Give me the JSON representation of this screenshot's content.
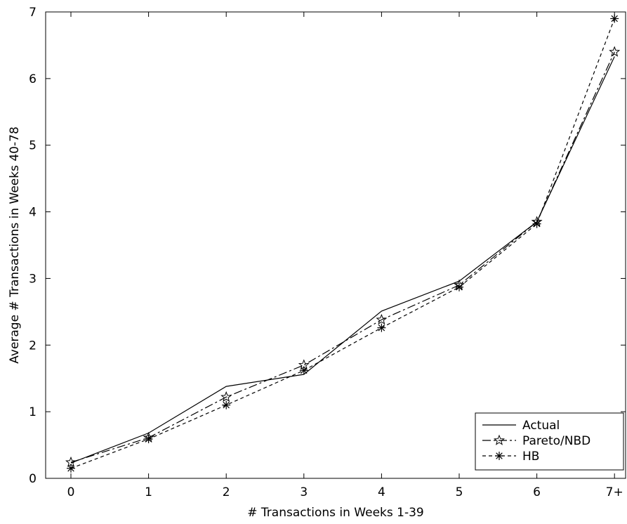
{
  "chart_data": {
    "type": "line",
    "title": "",
    "xlabel": "# Transactions in Weeks 1-39",
    "ylabel": "Average # Transactions in Weeks 40-78",
    "categories": [
      "0",
      "1",
      "2",
      "3",
      "4",
      "5",
      "6",
      "7+"
    ],
    "ylim": [
      0,
      7
    ],
    "yticks": [
      "0",
      "1",
      "2",
      "3",
      "4",
      "5",
      "6",
      "7"
    ],
    "grid": false,
    "legend_position": "bottom-right",
    "series": [
      {
        "name": "Actual",
        "values": [
          0.23,
          0.68,
          1.38,
          1.56,
          2.51,
          2.96,
          3.85,
          6.33
        ],
        "line": "solid",
        "marker": "none"
      },
      {
        "name": "Pareto/NBD",
        "values": [
          0.24,
          0.61,
          1.22,
          1.7,
          2.38,
          2.9,
          3.85,
          6.4
        ],
        "line": "dashdot",
        "marker": "star"
      },
      {
        "name": "HB",
        "values": [
          0.15,
          0.59,
          1.1,
          1.62,
          2.26,
          2.87,
          3.82,
          6.9
        ],
        "line": "dotted",
        "marker": "asterisk"
      }
    ]
  }
}
